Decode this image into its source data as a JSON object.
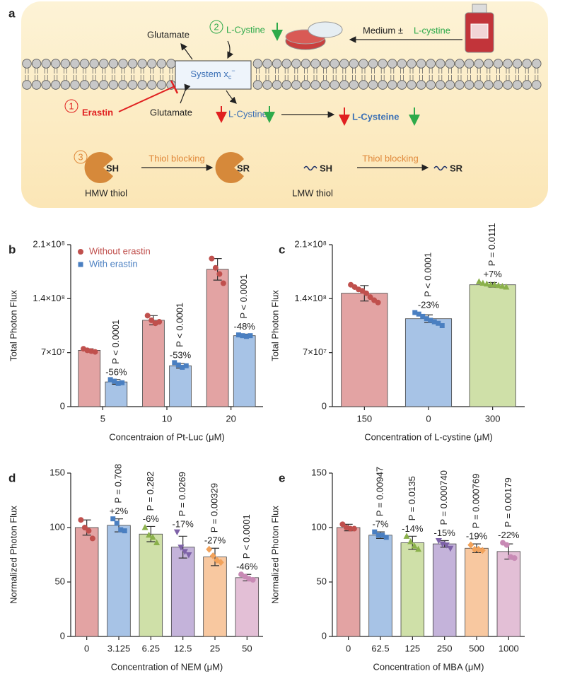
{
  "diagram": {
    "panel": "a",
    "glutamate_out": "Glutamate",
    "step2": "2",
    "cystine_out": "L-Cystine",
    "medium": "Medium ±",
    "medium_cystine": "L-cystine",
    "system": {
      "label": "System x",
      "sub": "c",
      "sup": "−"
    },
    "step1": "1",
    "erastin": "Erastin",
    "glutamate_in": "Glutamate",
    "cystine_in": "L-Cystine",
    "cysteine": "L-Cysteine",
    "step3": "3",
    "hmw_sh": "SH",
    "blocking1": "Thiol blocking",
    "hmw_sr": "SR",
    "hmw": "HMW thiol",
    "lmw_sh": "SH",
    "blocking2": "Thiol blocking",
    "lmw_sr": "SR",
    "lmw": "LMW thiol"
  },
  "chart_data": [
    {
      "type": "bar",
      "panel": "b",
      "ylabel": "Total Photon Flux",
      "xlabel": "Concentraion of Pt-Luc (μM)",
      "categories": [
        "5",
        "10",
        "20"
      ],
      "ylim": [
        0,
        210000000
      ],
      "yticks": [
        0,
        {
          "value": 70000000,
          "label": "7×10⁷"
        },
        {
          "value": 140000000,
          "label": "1.4×10⁸"
        },
        {
          "value": 210000000,
          "label": "2.1×10⁸"
        }
      ],
      "legend": "upper left",
      "series": [
        {
          "name": "Without erastin",
          "color": "#c0504d",
          "fill": "#e3a3a3",
          "marker": "circle",
          "values": [
            73000000,
            112000000,
            178000000
          ],
          "errors": [
            2000000,
            6000000,
            14000000
          ],
          "points": [
            [
              75000000,
              73000000,
              72000000,
              71000000
            ],
            [
              118000000,
              112000000,
              108000000,
              110000000
            ],
            [
              192000000,
              180000000,
              172000000,
              160000000
            ]
          ],
          "annotations": [
            null,
            null,
            null
          ]
        },
        {
          "name": "With erastin",
          "color": "#4a7fc1",
          "fill": "#a7c3e6",
          "marker": "square",
          "values": [
            32000000,
            53000000,
            92000000
          ],
          "errors": [
            3000000,
            3000000,
            2000000
          ],
          "points": [
            [
              35000000,
              33000000,
              30000000,
              31000000
            ],
            [
              57000000,
              54000000,
              51000000,
              53000000
            ],
            [
              93000000,
              92000000,
              91000000,
              92000000
            ]
          ],
          "annotations": [
            {
              "p": "P < 0.0001",
              "change": "-56%"
            },
            {
              "p": "P < 0.0001",
              "change": "-53%"
            },
            {
              "p": "P < 0.0001",
              "change": "-48%"
            }
          ]
        }
      ]
    },
    {
      "type": "bar",
      "panel": "c",
      "ylabel": "Total Photon Flux",
      "xlabel": "Concentration of L-cystine (μM)",
      "categories": [
        "150",
        "0",
        "300"
      ],
      "ylim": [
        0,
        210000000
      ],
      "yticks": [
        0,
        {
          "value": 70000000,
          "label": "7×10⁷"
        },
        {
          "value": 140000000,
          "label": "1.4×10⁸"
        },
        {
          "value": 210000000,
          "label": "2.1×10⁸"
        }
      ],
      "series": [
        {
          "color": [
            "#c0504d",
            "#4a7fc1",
            "#8ab04a"
          ],
          "fill": [
            "#e3a3a3",
            "#a7c3e6",
            "#cfe0a8"
          ],
          "marker": [
            "circle",
            "square",
            "triangle"
          ],
          "values": [
            147000000,
            114000000,
            158000000
          ],
          "errors": [
            10000000,
            5000000,
            3000000
          ],
          "points": [
            [
              158000000,
              155000000,
              152000000,
              150000000,
              147000000,
              142000000,
              138000000,
              135000000
            ],
            [
              122000000,
              120000000,
              117000000,
              114000000,
              112000000,
              110000000,
              108000000,
              105000000
            ],
            [
              162000000,
              160000000,
              159000000,
              158000000,
              158000000,
              157000000,
              156000000,
              155000000
            ]
          ],
          "annotations": [
            null,
            {
              "p": "P < 0.0001",
              "change": "-23%"
            },
            {
              "p": "P = 0.0111",
              "change": "+7%"
            }
          ]
        }
      ]
    },
    {
      "type": "bar",
      "panel": "d",
      "ylabel": "Normalized Photon Flux",
      "xlabel": "Concentration of NEM (μM)",
      "categories": [
        "0",
        "3.125",
        "6.25",
        "12.5",
        "25",
        "50"
      ],
      "ylim": [
        0,
        150
      ],
      "yticks": [
        0,
        50,
        100,
        150
      ],
      "series": [
        {
          "color": [
            "#c0504d",
            "#4a7fc1",
            "#8ab04a",
            "#7e62a8",
            "#f2a25a",
            "#c88ab5"
          ],
          "fill": [
            "#e3a3a3",
            "#a7c3e6",
            "#cfe0a8",
            "#c4b3da",
            "#f8c8a0",
            "#e3bfd6"
          ],
          "marker": [
            "circle",
            "square",
            "triangle",
            "triangle-down",
            "diamond",
            "circle"
          ],
          "values": [
            100,
            102,
            94,
            82,
            73,
            54
          ],
          "errors": [
            7,
            6,
            7,
            10,
            8,
            3
          ],
          "points": [
            [
              107,
              100,
              97,
              90
            ],
            [
              108,
              104,
              98,
              97
            ],
            [
              100,
              93,
              91,
              86
            ],
            [
              96,
              82,
              78,
              75
            ],
            [
              80,
              74,
              70,
              68
            ],
            [
              57,
              55,
              53,
              52
            ]
          ],
          "annotations": [
            null,
            {
              "p": "P = 0.708",
              "change": "+2%"
            },
            {
              "p": "P = 0.282",
              "change": "-6%"
            },
            {
              "p": "P = 0.0269",
              "change": "-17%"
            },
            {
              "p": "P = 0.00329",
              "change": "-27%"
            },
            {
              "p": "P < 0.0001",
              "change": "-46%"
            }
          ]
        }
      ]
    },
    {
      "type": "bar",
      "panel": "e",
      "ylabel": "Normalized Photon Flux",
      "xlabel": "Concentration of MBA (μM)",
      "categories": [
        "0",
        "62.5",
        "125",
        "250",
        "500",
        "1000"
      ],
      "ylim": [
        0,
        150
      ],
      "yticks": [
        0,
        50,
        100,
        150
      ],
      "series": [
        {
          "color": [
            "#c0504d",
            "#4a7fc1",
            "#8ab04a",
            "#7e62a8",
            "#f2a25a",
            "#c88ab5"
          ],
          "fill": [
            "#e3a3a3",
            "#a7c3e6",
            "#cfe0a8",
            "#c4b3da",
            "#f8c8a0",
            "#e3bfd6"
          ],
          "marker": [
            "circle",
            "square",
            "triangle",
            "triangle-down",
            "diamond",
            "circle"
          ],
          "values": [
            100,
            93,
            86,
            85,
            81,
            78
          ],
          "errors": [
            3,
            3,
            6,
            3,
            4,
            7
          ],
          "points": [
            [
              103,
              100,
              99,
              99
            ],
            [
              96,
              93,
              93,
              91
            ],
            [
              92,
              87,
              83,
              80
            ],
            [
              88,
              85,
              84,
              81
            ],
            [
              84,
              80,
              80,
              79
            ],
            [
              86,
              84,
              73,
              72
            ]
          ],
          "annotations": [
            null,
            {
              "p": "P = 0.00947",
              "change": "-7%"
            },
            {
              "p": "P = 0.0135",
              "change": "-14%"
            },
            {
              "p": "P = 0.000740",
              "change": "-15%"
            },
            {
              "p": "P = 0.000769",
              "change": "-19%"
            },
            {
              "p": "P = 0.00179",
              "change": "-22%"
            }
          ]
        }
      ]
    }
  ]
}
